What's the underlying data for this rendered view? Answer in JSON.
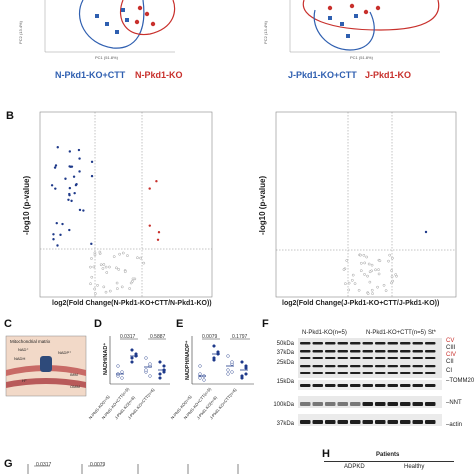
{
  "panelA": {
    "left_legend_blue": "N-Pkd1-KO+CTT",
    "left_legend_red": "N-Pkd1-KO",
    "right_legend_blue": "J-Pkd1-KO+CTT",
    "right_legend_red": "J-Pkd1-KO",
    "axis_pc1": "PC1 (51.8%)",
    "axis_pc2": "PC2 (13.4%)"
  },
  "panelB": {
    "letter": "B",
    "ylabel": "-log10 (p-value)",
    "left_xlabel": "log2(Fold Change(N-Pkd1-KO+CTT/N-Pkd1-KO))",
    "right_xlabel": "log2(Fold Change(J-Pkd1-KO+CTT/J-Pkd1-KO))"
  },
  "panelC": {
    "letter": "C",
    "matrix": "Mitochondrial matrix",
    "nad": "NAD⁺",
    "nadh": "NADH",
    "nadp": "NADP⁺",
    "imm": "IMM",
    "omm": "OMM",
    "hplus": "H⁺"
  },
  "panelD": {
    "letter": "D",
    "ylabel": "NADH/NAD⁺",
    "p1": "0.0317",
    "p2": "0.5887",
    "groups": [
      "N-Pkd1-KO(n=5)",
      "N-Pkd1-KO+CTT(n=5)",
      "J-Pkd1-KO(n=6)",
      "J-Pkd1-KO+CTT(n=6)"
    ]
  },
  "panelE": {
    "letter": "E",
    "ylabel": "NADPH/NADP⁺",
    "p1": "0.0079",
    "p2": "0.1797",
    "groups": [
      "N-Pkd1-KO(n=5)",
      "N-Pkd1-KO+CTT(n=5)",
      "J-Pkd1-KO(n=6)",
      "J-Pkd1-KO+CTT(n=6)"
    ]
  },
  "panelF": {
    "letter": "F",
    "group1": "N-Pkd1-KO(n=5)",
    "group2": "N-Pkd1-KO+CTT(n=5)",
    "st": "St*",
    "mw": [
      "50kDa",
      "37kDa",
      "25kDa",
      "15kDa",
      "100kDa",
      "37kDa"
    ],
    "bands": [
      "CV",
      "CIII",
      "CIV",
      "CII",
      "CI",
      "TOMM20",
      "NNT",
      "actin"
    ]
  },
  "panelG": {
    "letter": "G",
    "pvals": [
      "0.0317",
      "0.0079"
    ]
  },
  "panelH": {
    "letter": "H",
    "patients": "Patients",
    "adpkd": "ADPKD",
    "healthy": "Healthy"
  },
  "colors": {
    "blue": "#2f5fb0",
    "red": "#c8302c",
    "navy": "#1f3a8a"
  }
}
